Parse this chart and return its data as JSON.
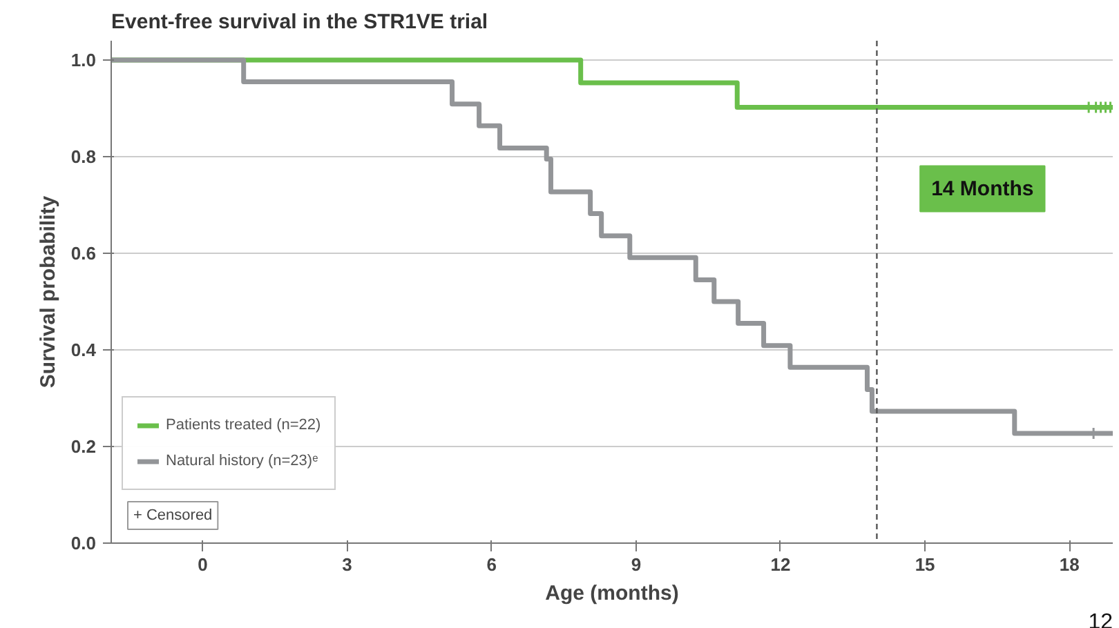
{
  "chart_data": {
    "type": "step",
    "title": "Event-free survival in the STR1VE trial",
    "xlabel": "Age (months)",
    "ylabel": "Survival probability",
    "series": [
      {
        "name": "Patients treated (n=22)",
        "color": "#6abf4b",
        "x": [
          -1.9,
          7.85,
          11.1,
          18.9
        ],
        "values": [
          1.0,
          0.953,
          0.902,
          0.902
        ]
      },
      {
        "name": "Natural history (n=23)ᵉ",
        "color": "#939598",
        "x": [
          -1.9,
          0.85,
          5.18,
          5.74,
          6.17,
          7.14,
          7.23,
          8.05,
          8.28,
          8.87,
          10.24,
          10.62,
          11.12,
          11.65,
          12.2,
          13.8,
          13.9,
          16.86,
          18.9
        ],
        "values": [
          1.0,
          0.955,
          0.909,
          0.864,
          0.818,
          0.795,
          0.727,
          0.682,
          0.636,
          0.591,
          0.545,
          0.5,
          0.455,
          0.409,
          0.364,
          0.318,
          0.273,
          0.227,
          0.227
        ]
      },
      {
        "type": "scatter",
        "marker": "cross",
        "color": "#6abf4b",
        "x": [
          18.4,
          18.55,
          18.65,
          18.75,
          18.85
        ],
        "values": [
          0.902,
          0.902,
          0.902,
          0.902,
          0.902
        ]
      },
      {
        "type": "scatter",
        "marker": "cross",
        "color": "#939598",
        "x": [
          18.5
        ],
        "values": [
          0.227
        ]
      }
    ],
    "xlim": [
      -1.9,
      18.9
    ],
    "ylim": [
      0,
      1.04
    ],
    "xticks": [
      0,
      3,
      6,
      9,
      12,
      15,
      18
    ],
    "yticks": [
      {
        "value": 0,
        "label": "0.0"
      },
      {
        "value": 0.2,
        "label": "0.2"
      },
      {
        "value": 0.4,
        "label": "0.4"
      },
      {
        "value": 0.6,
        "label": "0.6"
      },
      {
        "value": 0.8,
        "label": "0.8"
      },
      {
        "value": 1,
        "label": "1.0"
      }
    ],
    "grid": "y",
    "legend": "bottom left",
    "line_style": "solid",
    "ref_lines": [
      {
        "axis": "x",
        "value": 14,
        "label": "14 Months",
        "color": "#555555",
        "line_style": "dashed"
      }
    ],
    "annotations": [
      "+ Censored",
      "12"
    ]
  }
}
